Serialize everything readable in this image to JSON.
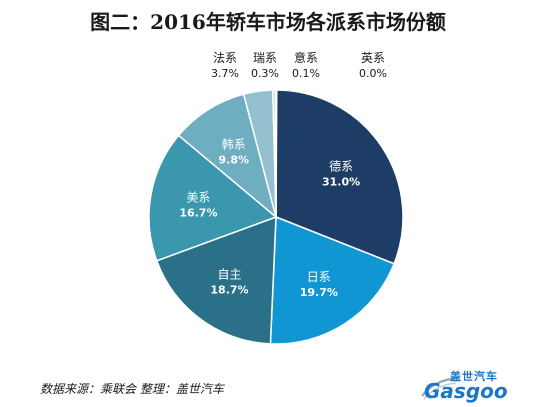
{
  "title": "图二：2016年轿车市场各派系市场份额",
  "footer": {
    "source": "数据来源：乘联会  整理：盖世汽车"
  },
  "logo": {
    "cn": "盖世汽车",
    "en": "Gasgoo"
  },
  "chart_data": {
    "type": "pie",
    "title": "图二：2016年轿车市场各派系市场份额",
    "start": "12 o'clock",
    "direction": "clockwise",
    "slices": [
      {
        "label": "德系",
        "value": 31.0,
        "display": "31.0%",
        "color": "#1d3d66",
        "label_pos": "inside"
      },
      {
        "label": "日系",
        "value": 19.7,
        "display": "19.7%",
        "color": "#1097d3",
        "label_pos": "inside"
      },
      {
        "label": "自主",
        "value": 18.7,
        "display": "18.7%",
        "color": "#2a7088",
        "label_pos": "inside"
      },
      {
        "label": "美系",
        "value": 16.7,
        "display": "16.7%",
        "color": "#3a97ad",
        "label_pos": "inside"
      },
      {
        "label": "韩系",
        "value": 9.8,
        "display": "9.8%",
        "color": "#6fadc0",
        "label_pos": "inside"
      },
      {
        "label": "法系",
        "value": 3.7,
        "display": "3.7%",
        "color": "#94c0cf",
        "label_pos": "outside"
      },
      {
        "label": "瑞系",
        "value": 0.3,
        "display": "0.3%",
        "color": "#aacbd6",
        "label_pos": "outside"
      },
      {
        "label": "意系",
        "value": 0.1,
        "display": "0.1%",
        "color": "#bdd6de",
        "label_pos": "outside"
      },
      {
        "label": "英系",
        "value": 0.0,
        "display": "0.0%",
        "color": "#cfe1e6",
        "label_pos": "outside"
      }
    ]
  }
}
